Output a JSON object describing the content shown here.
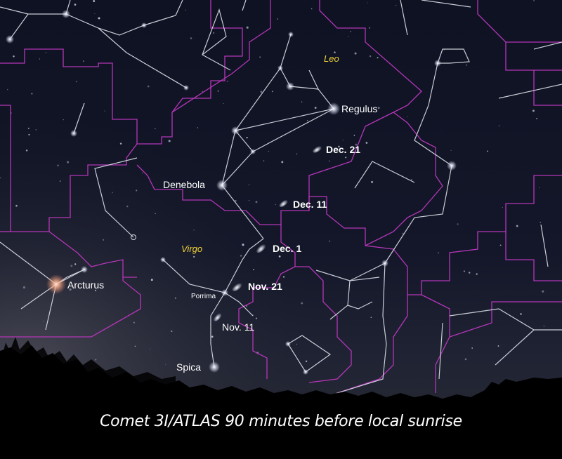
{
  "constellations": {
    "leo": "Leo",
    "virgo": "Virgo"
  },
  "stars": {
    "regulus": "Regulus",
    "denebola": "Denebola",
    "arcturus": "Arcturus",
    "porrima": "Porrima",
    "spica": "Spica"
  },
  "comet_positions": [
    "Dec. 21",
    "Dec. 11",
    "Dec. 1",
    "Nov. 21",
    "Nov. 11"
  ],
  "caption": "Comet 3I/ATLAS 90 minutes before local sunrise",
  "colors": {
    "sky_top": "#101425",
    "boundary": "#b536b8",
    "figure_line": "#d9dde6",
    "constellation_name": "#f2d23a",
    "label": "#ffffff"
  }
}
